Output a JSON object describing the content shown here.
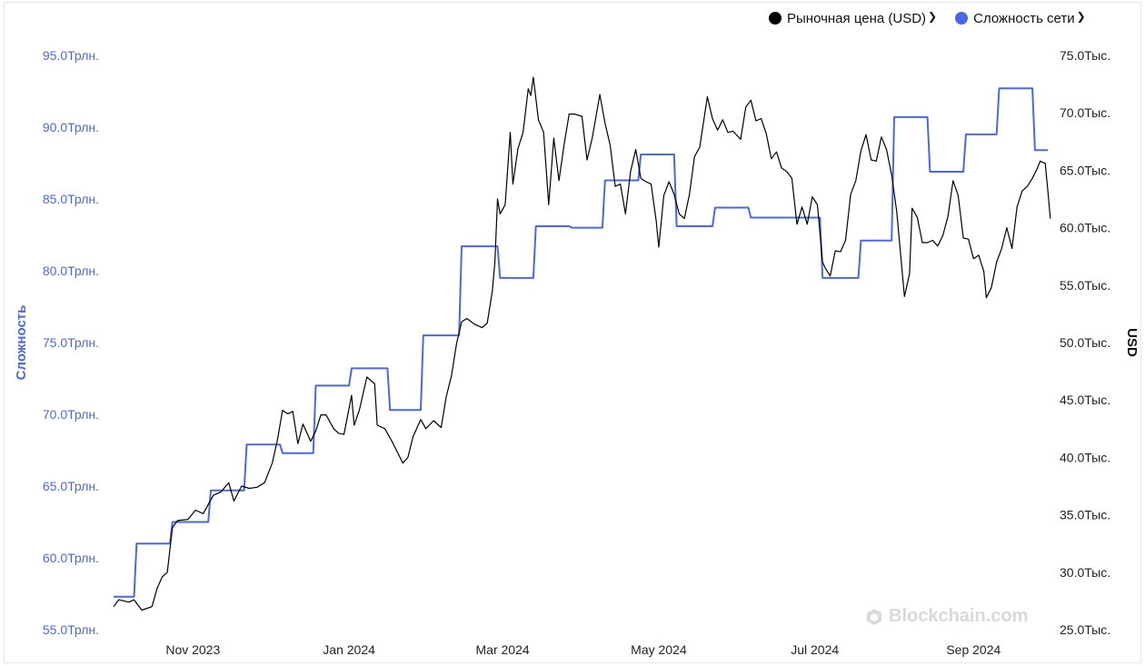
{
  "legend": {
    "price_label": "Рыночная цена (USD)",
    "difficulty_label": "Сложность сети"
  },
  "watermark": "Blockchain.com",
  "colors": {
    "price": "#000000",
    "difficulty": "#4a67e8",
    "left_axis": "#4a67e8",
    "right_axis": "#222222"
  },
  "chart_data": {
    "type": "line",
    "left_axis": {
      "label": "Сложность",
      "range": [
        55.0,
        95.0
      ],
      "ticks": [
        "55.0Трлн.",
        "60.0Трлн.",
        "65.0Трлн.",
        "70.0Трлн.",
        "75.0Трлн.",
        "80.0Трлн.",
        "85.0Трлн.",
        "90.0Трлн.",
        "95.0Трлн."
      ]
    },
    "right_axis": {
      "label": "USD",
      "range": [
        25000,
        75000
      ],
      "ticks": [
        "25.0Тыс.",
        "30.0Тыс.",
        "35.0Тыс.",
        "40.0Тыс.",
        "45.0Тыс.",
        "50.0Тыс.",
        "55.0Тыс.",
        "60.0Тыс.",
        "65.0Тыс.",
        "70.0Тыс.",
        "75.0Тыс."
      ]
    },
    "x_axis": {
      "range": [
        "2023-10-01",
        "2024-09-30"
      ],
      "ticks": [
        {
          "date": "2023-11-01",
          "label": "Nov 2023"
        },
        {
          "date": "2024-01-01",
          "label": "Jan 2024"
        },
        {
          "date": "2024-03-01",
          "label": "Mar 2024"
        },
        {
          "date": "2024-05-01",
          "label": "May 2024"
        },
        {
          "date": "2024-07-01",
          "label": "Jul 2024"
        },
        {
          "date": "2024-09-01",
          "label": "Sep 2024"
        }
      ]
    },
    "series": [
      {
        "name": "Сложность сети",
        "axis": "left",
        "step": true,
        "points": [
          [
            "2023-10-01",
            57.3
          ],
          [
            "2023-10-09",
            57.3
          ],
          [
            "2023-10-10",
            61.0
          ],
          [
            "2023-10-23",
            61.0
          ],
          [
            "2023-10-24",
            62.5
          ],
          [
            "2023-11-07",
            62.5
          ],
          [
            "2023-11-08",
            64.7
          ],
          [
            "2023-11-21",
            64.7
          ],
          [
            "2023-11-22",
            67.9
          ],
          [
            "2023-12-05",
            67.9
          ],
          [
            "2023-12-06",
            67.3
          ],
          [
            "2023-12-18",
            67.3
          ],
          [
            "2023-12-19",
            72.0
          ],
          [
            "2024-01-01",
            72.0
          ],
          [
            "2024-01-02",
            73.2
          ],
          [
            "2024-01-16",
            73.2
          ],
          [
            "2024-01-17",
            70.3
          ],
          [
            "2024-01-29",
            70.3
          ],
          [
            "2024-01-30",
            75.5
          ],
          [
            "2024-02-13",
            75.5
          ],
          [
            "2024-02-14",
            81.7
          ],
          [
            "2024-02-28",
            81.7
          ],
          [
            "2024-02-29",
            79.5
          ],
          [
            "2024-03-13",
            79.5
          ],
          [
            "2024-03-14",
            83.1
          ],
          [
            "2024-03-27",
            83.1
          ],
          [
            "2024-03-28",
            83.0
          ],
          [
            "2024-04-09",
            83.0
          ],
          [
            "2024-04-10",
            86.3
          ],
          [
            "2024-04-23",
            86.3
          ],
          [
            "2024-04-24",
            88.1
          ],
          [
            "2024-05-07",
            88.1
          ],
          [
            "2024-05-08",
            83.1
          ],
          [
            "2024-05-22",
            83.1
          ],
          [
            "2024-05-23",
            84.4
          ],
          [
            "2024-06-05",
            84.4
          ],
          [
            "2024-06-06",
            83.7
          ],
          [
            "2024-06-19",
            83.7
          ],
          [
            "2024-07-03",
            83.7
          ],
          [
            "2024-07-04",
            79.5
          ],
          [
            "2024-07-18",
            79.5
          ],
          [
            "2024-07-19",
            82.1
          ],
          [
            "2024-07-31",
            82.1
          ],
          [
            "2024-08-01",
            90.7
          ],
          [
            "2024-08-14",
            90.7
          ],
          [
            "2024-08-15",
            86.9
          ],
          [
            "2024-08-28",
            86.9
          ],
          [
            "2024-08-29",
            89.5
          ],
          [
            "2024-09-10",
            89.5
          ],
          [
            "2024-09-11",
            92.7
          ],
          [
            "2024-09-24",
            92.7
          ],
          [
            "2024-09-25",
            88.4
          ],
          [
            "2024-09-30",
            88.4
          ]
        ]
      },
      {
        "name": "Рыночная цена (USD)",
        "axis": "right",
        "step": false,
        "points": [
          [
            "2023-10-01",
            27000
          ],
          [
            "2023-10-03",
            27600
          ],
          [
            "2023-10-07",
            27400
          ],
          [
            "2023-10-09",
            27600
          ],
          [
            "2023-10-12",
            26700
          ],
          [
            "2023-10-16",
            27000
          ],
          [
            "2023-10-18",
            28600
          ],
          [
            "2023-10-20",
            29600
          ],
          [
            "2023-10-22",
            30000
          ],
          [
            "2023-10-24",
            33900
          ],
          [
            "2023-10-26",
            34500
          ],
          [
            "2023-10-30",
            34600
          ],
          [
            "2023-11-02",
            35400
          ],
          [
            "2023-11-05",
            35100
          ],
          [
            "2023-11-09",
            36700
          ],
          [
            "2023-11-12",
            37000
          ],
          [
            "2023-11-15",
            37800
          ],
          [
            "2023-11-17",
            36200
          ],
          [
            "2023-11-20",
            37500
          ],
          [
            "2023-11-23",
            37300
          ],
          [
            "2023-11-26",
            37400
          ],
          [
            "2023-11-29",
            37800
          ],
          [
            "2023-12-02",
            39500
          ],
          [
            "2023-12-04",
            41500
          ],
          [
            "2023-12-06",
            44100
          ],
          [
            "2023-12-08",
            43800
          ],
          [
            "2023-12-10",
            44000
          ],
          [
            "2023-12-12",
            41200
          ],
          [
            "2023-12-14",
            42900
          ],
          [
            "2023-12-17",
            41400
          ],
          [
            "2023-12-19",
            42300
          ],
          [
            "2023-12-21",
            43700
          ],
          [
            "2023-12-23",
            43700
          ],
          [
            "2023-12-26",
            42500
          ],
          [
            "2023-12-28",
            42100
          ],
          [
            "2023-12-30",
            42000
          ],
          [
            "2024-01-02",
            45400
          ],
          [
            "2024-01-03",
            42800
          ],
          [
            "2024-01-05",
            44100
          ],
          [
            "2024-01-08",
            47000
          ],
          [
            "2024-01-10",
            46600
          ],
          [
            "2024-01-11",
            46400
          ],
          [
            "2024-01-12",
            42800
          ],
          [
            "2024-01-15",
            42500
          ],
          [
            "2024-01-18",
            41300
          ],
          [
            "2024-01-22",
            39500
          ],
          [
            "2024-01-24",
            40000
          ],
          [
            "2024-01-26",
            41800
          ],
          [
            "2024-01-29",
            43300
          ],
          [
            "2024-01-31",
            42500
          ],
          [
            "2024-02-03",
            43200
          ],
          [
            "2024-02-06",
            42600
          ],
          [
            "2024-02-08",
            45300
          ],
          [
            "2024-02-10",
            47100
          ],
          [
            "2024-02-12",
            49900
          ],
          [
            "2024-02-14",
            51800
          ],
          [
            "2024-02-16",
            52100
          ],
          [
            "2024-02-19",
            51600
          ],
          [
            "2024-02-22",
            51300
          ],
          [
            "2024-02-24",
            51700
          ],
          [
            "2024-02-26",
            54500
          ],
          [
            "2024-02-27",
            57000
          ],
          [
            "2024-02-28",
            62500
          ],
          [
            "2024-02-29",
            61200
          ],
          [
            "2024-03-02",
            62000
          ],
          [
            "2024-03-04",
            68300
          ],
          [
            "2024-03-05",
            63800
          ],
          [
            "2024-03-07",
            66900
          ],
          [
            "2024-03-09",
            68300
          ],
          [
            "2024-03-11",
            72100
          ],
          [
            "2024-03-12",
            71500
          ],
          [
            "2024-03-13",
            73100
          ],
          [
            "2024-03-15",
            69400
          ],
          [
            "2024-03-17",
            68300
          ],
          [
            "2024-03-19",
            62000
          ],
          [
            "2024-03-21",
            67800
          ],
          [
            "2024-03-23",
            64100
          ],
          [
            "2024-03-25",
            67200
          ],
          [
            "2024-03-27",
            69900
          ],
          [
            "2024-03-29",
            69900
          ],
          [
            "2024-04-01",
            69700
          ],
          [
            "2024-04-03",
            65900
          ],
          [
            "2024-04-05",
            67800
          ],
          [
            "2024-04-08",
            71600
          ],
          [
            "2024-04-10",
            69100
          ],
          [
            "2024-04-12",
            67200
          ],
          [
            "2024-04-14",
            63600
          ],
          [
            "2024-04-16",
            63800
          ],
          [
            "2024-04-18",
            61200
          ],
          [
            "2024-04-20",
            64900
          ],
          [
            "2024-04-22",
            66800
          ],
          [
            "2024-04-24",
            64300
          ],
          [
            "2024-04-26",
            64000
          ],
          [
            "2024-04-28",
            63800
          ],
          [
            "2024-04-30",
            60600
          ],
          [
            "2024-05-01",
            58300
          ],
          [
            "2024-05-03",
            62800
          ],
          [
            "2024-05-05",
            64000
          ],
          [
            "2024-05-07",
            62900
          ],
          [
            "2024-05-09",
            61200
          ],
          [
            "2024-05-11",
            60800
          ],
          [
            "2024-05-13",
            62900
          ],
          [
            "2024-05-15",
            66200
          ],
          [
            "2024-05-17",
            67000
          ],
          [
            "2024-05-20",
            71400
          ],
          [
            "2024-05-22",
            69500
          ],
          [
            "2024-05-24",
            68500
          ],
          [
            "2024-05-26",
            69400
          ],
          [
            "2024-05-28",
            68300
          ],
          [
            "2024-05-30",
            68400
          ],
          [
            "2024-06-02",
            67700
          ],
          [
            "2024-06-04",
            70500
          ],
          [
            "2024-06-06",
            71100
          ],
          [
            "2024-06-08",
            69300
          ],
          [
            "2024-06-10",
            69500
          ],
          [
            "2024-06-12",
            68200
          ],
          [
            "2024-06-14",
            66000
          ],
          [
            "2024-06-16",
            66600
          ],
          [
            "2024-06-18",
            65200
          ],
          [
            "2024-06-20",
            64900
          ],
          [
            "2024-06-22",
            64300
          ],
          [
            "2024-06-24",
            60300
          ],
          [
            "2024-06-26",
            61800
          ],
          [
            "2024-06-28",
            60300
          ],
          [
            "2024-06-30",
            62700
          ],
          [
            "2024-07-02",
            62000
          ],
          [
            "2024-07-04",
            57000
          ],
          [
            "2024-07-05",
            56500
          ],
          [
            "2024-07-07",
            55800
          ],
          [
            "2024-07-09",
            58000
          ],
          [
            "2024-07-11",
            57900
          ],
          [
            "2024-07-13",
            58900
          ],
          [
            "2024-07-15",
            62900
          ],
          [
            "2024-07-17",
            64100
          ],
          [
            "2024-07-19",
            66700
          ],
          [
            "2024-07-21",
            68100
          ],
          [
            "2024-07-23",
            65900
          ],
          [
            "2024-07-25",
            65800
          ],
          [
            "2024-07-27",
            67900
          ],
          [
            "2024-07-29",
            66800
          ],
          [
            "2024-07-31",
            64600
          ],
          [
            "2024-08-02",
            61400
          ],
          [
            "2024-08-05",
            54000
          ],
          [
            "2024-08-07",
            56000
          ],
          [
            "2024-08-08",
            61700
          ],
          [
            "2024-08-10",
            60900
          ],
          [
            "2024-08-12",
            58700
          ],
          [
            "2024-08-14",
            58700
          ],
          [
            "2024-08-16",
            58900
          ],
          [
            "2024-08-18",
            58400
          ],
          [
            "2024-08-20",
            59300
          ],
          [
            "2024-08-22",
            61000
          ],
          [
            "2024-08-24",
            64100
          ],
          [
            "2024-08-26",
            62800
          ],
          [
            "2024-08-28",
            59100
          ],
          [
            "2024-08-30",
            59000
          ],
          [
            "2024-09-01",
            57300
          ],
          [
            "2024-09-03",
            57600
          ],
          [
            "2024-09-05",
            56200
          ],
          [
            "2024-09-06",
            53900
          ],
          [
            "2024-09-08",
            54800
          ],
          [
            "2024-09-10",
            57000
          ],
          [
            "2024-09-12",
            58200
          ],
          [
            "2024-09-14",
            60000
          ],
          [
            "2024-09-16",
            58200
          ],
          [
            "2024-09-18",
            61800
          ],
          [
            "2024-09-20",
            63200
          ],
          [
            "2024-09-22",
            63600
          ],
          [
            "2024-09-24",
            64300
          ],
          [
            "2024-09-26",
            65200
          ],
          [
            "2024-09-27",
            65800
          ],
          [
            "2024-09-29",
            65600
          ],
          [
            "2024-09-30",
            63300
          ],
          [
            "2024-10-01",
            60800
          ]
        ]
      }
    ]
  }
}
